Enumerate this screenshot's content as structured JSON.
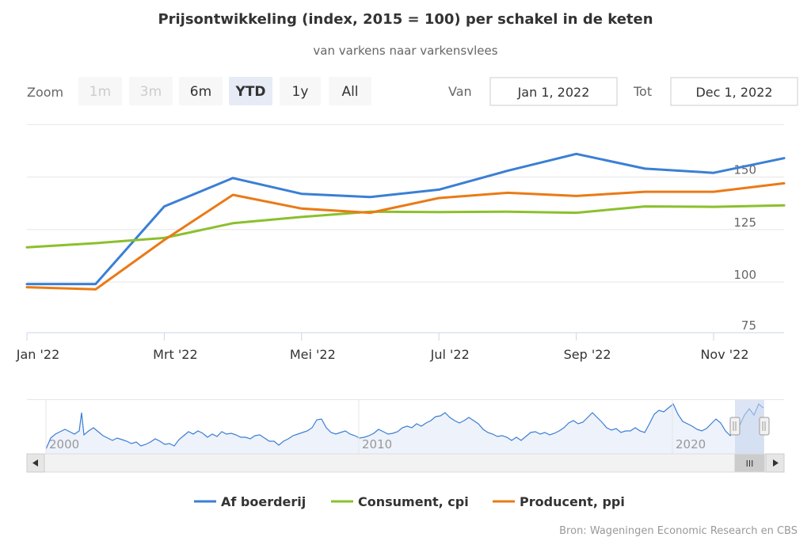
{
  "header": {
    "title": "Prijsontwikkeling (index, 2015 = 100) per schakel in de keten",
    "subtitle": "van varkens naar varkensvlees"
  },
  "range_selector": {
    "zoom_label": "Zoom",
    "buttons": [
      {
        "label": "1m",
        "state": "disabled"
      },
      {
        "label": "3m",
        "state": "disabled"
      },
      {
        "label": "6m",
        "state": "normal"
      },
      {
        "label": "YTD",
        "state": "selected"
      },
      {
        "label": "1y",
        "state": "normal"
      },
      {
        "label": "All",
        "state": "normal"
      }
    ],
    "from_label": "Van",
    "from_value": "Jan 1, 2022",
    "to_label": "Tot",
    "to_value": "Dec 1, 2022"
  },
  "navigator": {
    "year_labels": [
      "2000",
      "2010",
      "2020"
    ],
    "scroll_grip": "III"
  },
  "source": "Bron: Wageningen Economic Research en CBS",
  "colors": {
    "af_boerderij": "#3a7fd5",
    "consument": "#8bc02c",
    "producent": "#ea7a17",
    "grid": "#e6e6e6",
    "axis_text": "#333333",
    "button_selected": "#e6ebf5",
    "button_normal": "#f7f7f7",
    "navigator_mask": "#c6d3ee"
  },
  "chart_data": {
    "type": "line",
    "title": "Prijsontwikkeling (index, 2015 = 100) per schakel in de keten",
    "subtitle": "van varkens naar varkensvlees",
    "x": [
      "Jan 2022",
      "Feb 2022",
      "Mrt 2022",
      "Apr 2022",
      "Mei 2022",
      "Jun 2022",
      "Jul 2022",
      "Aug 2022",
      "Sep 2022",
      "Okt 2022",
      "Nov 2022",
      "Dec 2022"
    ],
    "x_tick_labels": [
      "Jan '22",
      "Mrt '22",
      "Mei '22",
      "Jul '22",
      "Sep '22",
      "Nov '22"
    ],
    "y_tick_labels": [
      "75",
      "100",
      "125",
      "150"
    ],
    "ylim": [
      75,
      175
    ],
    "xlabel": "",
    "ylabel": "",
    "grid": true,
    "legend_position": "bottom",
    "series": [
      {
        "name": "Af boerderij",
        "values": [
          99,
          99,
          136,
          149.5,
          142,
          140.5,
          144,
          153,
          161,
          154,
          152,
          159
        ]
      },
      {
        "name": "Consument, cpi",
        "values": [
          116.5,
          118.5,
          121,
          128,
          131,
          133.5,
          133.3,
          133.5,
          133,
          136,
          135.8,
          136.5
        ]
      },
      {
        "name": "Producent, ppi",
        "values": [
          97.5,
          96.5,
          120,
          141.5,
          135,
          133,
          140,
          142.5,
          141,
          143,
          143,
          147
        ]
      }
    ]
  }
}
